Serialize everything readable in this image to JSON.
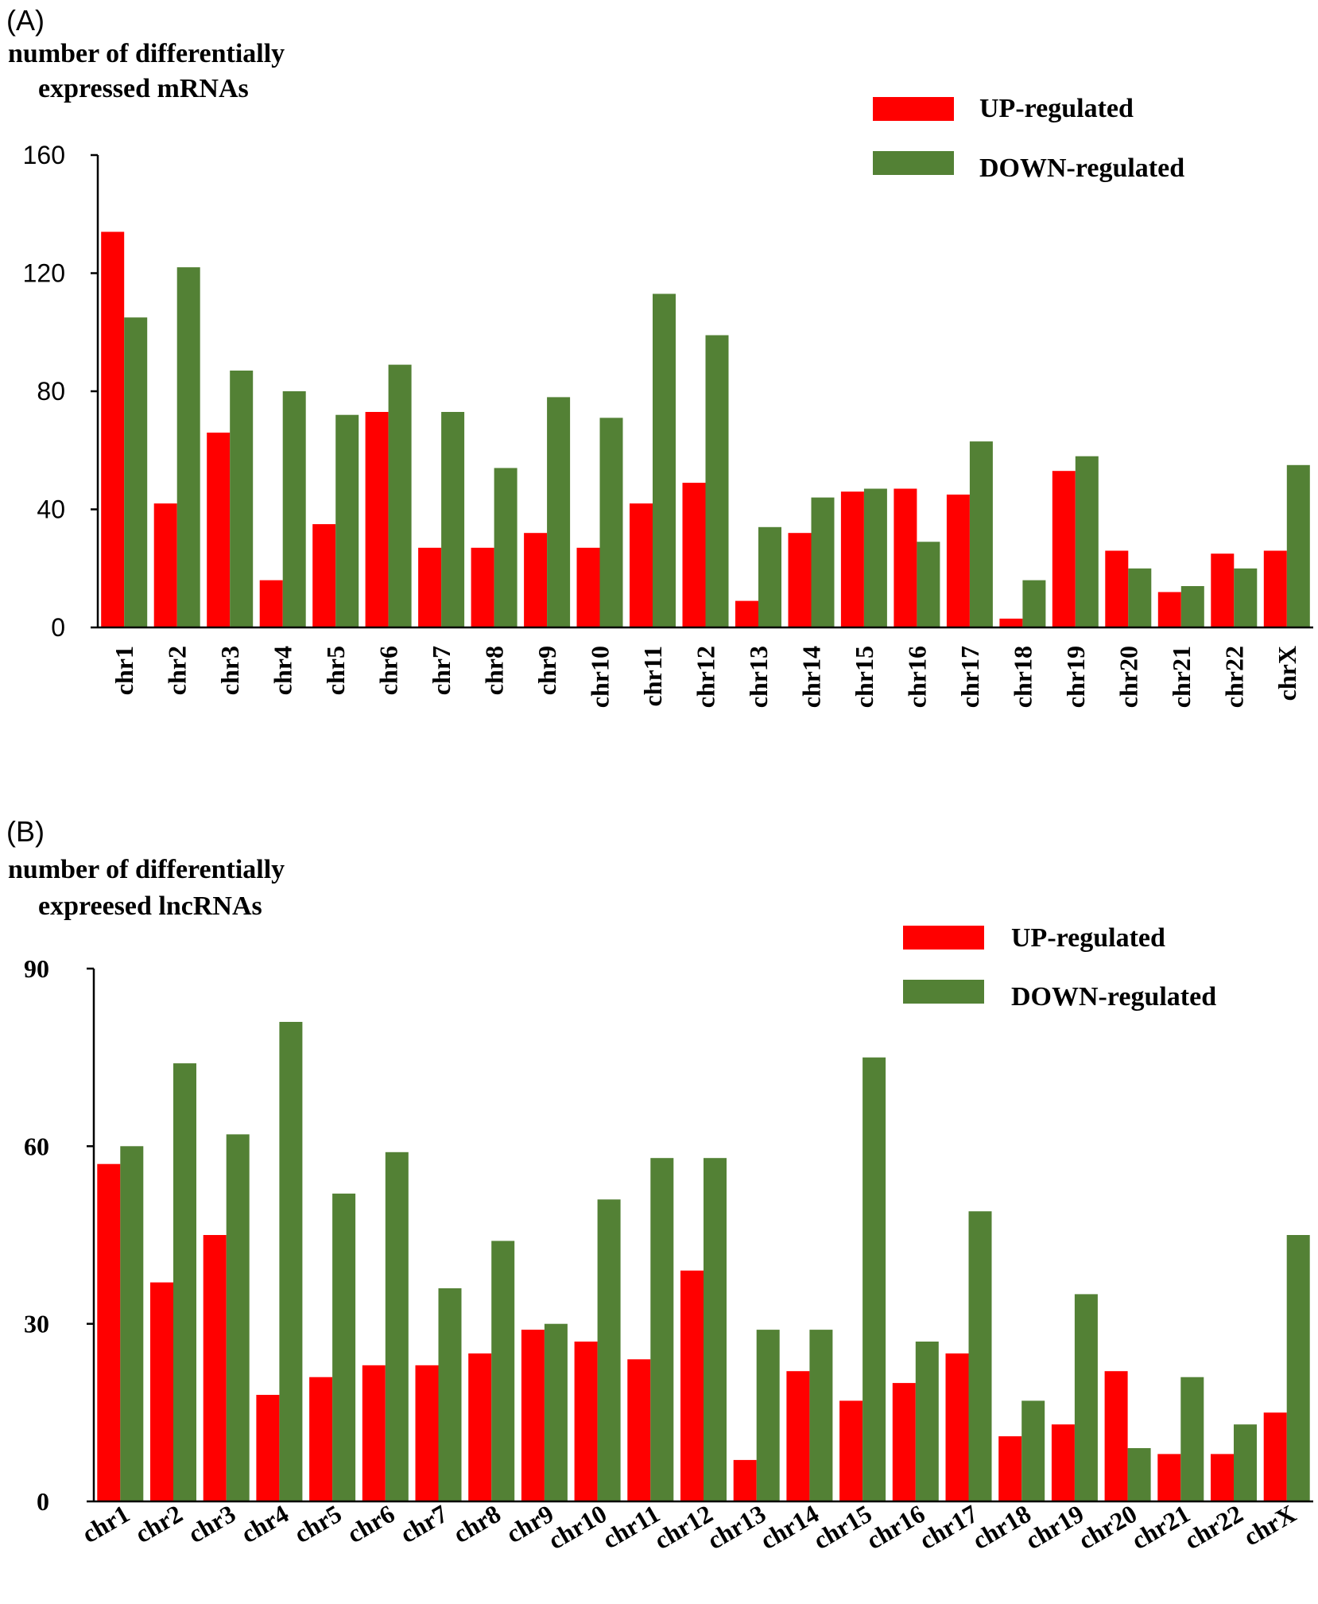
{
  "chart_data": [
    {
      "type": "bar",
      "panel_label": "(A)",
      "ylabel": [
        "number of differentially",
        "expressed mRNAs"
      ],
      "xlabel": "",
      "ylim": [
        0,
        160
      ],
      "yticks": [
        0,
        40,
        80,
        120,
        160
      ],
      "grid": false,
      "legend_position": "top-right",
      "categories": [
        "chr1",
        "chr2",
        "chr3",
        "chr4",
        "chr5",
        "chr6",
        "chr7",
        "chr8",
        "chr9",
        "chr10",
        "chr11",
        "chr12",
        "chr13",
        "chr14",
        "chr15",
        "chr16",
        "chr17",
        "chr18",
        "chr19",
        "chr20",
        "chr21",
        "chr22",
        "chrX"
      ],
      "series": [
        {
          "name": "UP-regulated",
          "color": "#ff0000",
          "values": [
            134,
            42,
            66,
            16,
            35,
            73,
            27,
            27,
            32,
            27,
            42,
            49,
            9,
            32,
            46,
            47,
            45,
            3,
            53,
            26,
            12,
            25,
            26
          ]
        },
        {
          "name": "DOWN-regulated",
          "color": "#538135",
          "values": [
            105,
            122,
            87,
            80,
            72,
            89,
            73,
            54,
            78,
            71,
            113,
            99,
            34,
            44,
            47,
            29,
            63,
            16,
            58,
            20,
            14,
            20,
            55
          ]
        }
      ]
    },
    {
      "type": "bar",
      "panel_label": "(B)",
      "ylabel": [
        "number of differentially",
        "expreesed lncRNAs"
      ],
      "xlabel": "",
      "ylim": [
        0,
        90
      ],
      "yticks": [
        0,
        30,
        60,
        90
      ],
      "grid": false,
      "legend_position": "top-right",
      "categories": [
        "chr1",
        "chr2",
        "chr3",
        "chr4",
        "chr5",
        "chr6",
        "chr7",
        "chr8",
        "chr9",
        "chr10",
        "chr11",
        "chr12",
        "chr13",
        "chr14",
        "chr15",
        "chr16",
        "chr17",
        "chr18",
        "chr19",
        "chr20",
        "chr21",
        "chr22",
        "chrX"
      ],
      "series": [
        {
          "name": "UP-regulated",
          "color": "#ff0000",
          "values": [
            57,
            37,
            45,
            18,
            21,
            23,
            23,
            25,
            29,
            27,
            24,
            39,
            7,
            22,
            17,
            20,
            25,
            11,
            13,
            22,
            8,
            8,
            15
          ]
        },
        {
          "name": "DOWN-regulated",
          "color": "#538135",
          "values": [
            60,
            74,
            62,
            81,
            52,
            59,
            36,
            44,
            30,
            51,
            58,
            58,
            29,
            29,
            75,
            27,
            49,
            17,
            35,
            9,
            21,
            13,
            45
          ]
        }
      ]
    }
  ]
}
